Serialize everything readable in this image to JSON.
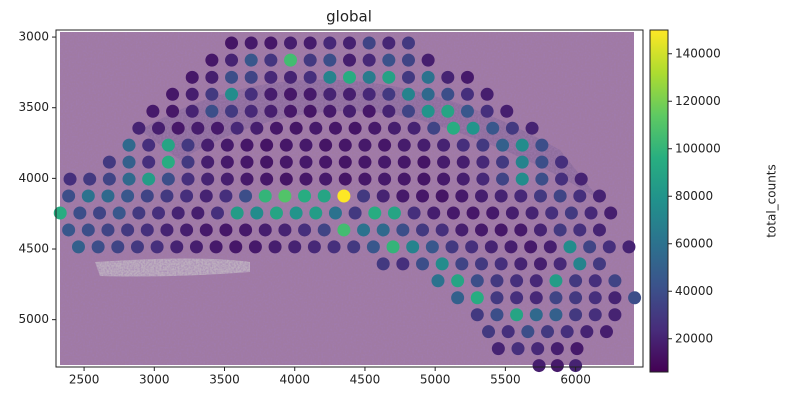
{
  "chart_data": {
    "type": "scatter",
    "title": "global",
    "colorbar_label": "total_counts",
    "colormap": "viridis",
    "xlim": [
      2300,
      6480
    ],
    "ylim": [
      5335,
      2950
    ],
    "xticks": [
      2500,
      3000,
      3500,
      4000,
      4500,
      5000,
      5500,
      6000
    ],
    "yticks": [
      3000,
      3500,
      4000,
      4500,
      5000
    ],
    "clim": [
      6000,
      150000
    ],
    "cticks": [
      20000,
      40000,
      60000,
      80000,
      100000,
      120000,
      140000
    ],
    "rows": [
      {
        "y": 3042,
        "x": [
          3550,
          3690,
          3830,
          3970,
          4110,
          4250,
          4390,
          4530,
          4670,
          4810
        ],
        "values": [
          14000,
          16000,
          15000,
          18000,
          17000,
          22000,
          19000,
          35000,
          21000,
          30000
        ]
      },
      {
        "y": 3163,
        "x": [
          3410,
          3550,
          3690,
          3830,
          3970,
          4110,
          4250,
          4390,
          4530,
          4670,
          4810,
          4950
        ],
        "values": [
          15000,
          20000,
          45000,
          28000,
          105000,
          30000,
          40000,
          18000,
          22000,
          42000,
          35000,
          18000
        ]
      },
      {
        "y": 3285,
        "x": [
          3270,
          3410,
          3550,
          3690,
          3830,
          3970,
          4110,
          4250,
          4390,
          4530,
          4670,
          4810,
          4950,
          5090,
          5230
        ],
        "values": [
          15000,
          18000,
          40000,
          35000,
          22000,
          20000,
          25000,
          70000,
          95000,
          65000,
          88000,
          30000,
          60000,
          20000,
          16000
        ]
      },
      {
        "y": 3405,
        "x": [
          3130,
          3270,
          3410,
          3550,
          3690,
          3830,
          3970,
          4110,
          4250,
          4390,
          4530,
          4670,
          4810,
          4950,
          5090,
          5230,
          5370
        ],
        "values": [
          15000,
          18000,
          30000,
          75000,
          25000,
          17000,
          15000,
          16000,
          20000,
          18000,
          22000,
          30000,
          70000,
          55000,
          40000,
          25000,
          18000
        ]
      },
      {
        "y": 3525,
        "x": [
          2990,
          3130,
          3270,
          3410,
          3550,
          3690,
          3830,
          3970,
          4110,
          4250,
          4390,
          4530,
          4670,
          4810,
          4950,
          5090,
          5230,
          5370,
          5510
        ],
        "values": [
          16000,
          15000,
          20000,
          40000,
          30000,
          22000,
          18000,
          15000,
          14000,
          16000,
          18000,
          15000,
          20000,
          35000,
          80000,
          90000,
          45000,
          25000,
          18000
        ]
      },
      {
        "y": 3645,
        "x": [
          2890,
          3030,
          3170,
          3310,
          3450,
          3590,
          3730,
          3870,
          4010,
          4150,
          4290,
          4430,
          4570,
          4710,
          4850,
          4990,
          5130,
          5270,
          5410,
          5550,
          5690
        ],
        "values": [
          20000,
          18000,
          15000,
          17000,
          16000,
          22000,
          18000,
          15000,
          14000,
          16000,
          15000,
          14000,
          16000,
          18000,
          20000,
          35000,
          95000,
          80000,
          45000,
          30000,
          20000
        ]
      },
      {
        "y": 3765,
        "x": [
          2820,
          2960,
          3100,
          3240,
          3380,
          3520,
          3660,
          3800,
          3940,
          4080,
          4220,
          4360,
          4500,
          4640,
          4780,
          4920,
          5060,
          5200,
          5340,
          5480,
          5620,
          5760
        ],
        "values": [
          55000,
          25000,
          90000,
          30000,
          18000,
          16000,
          15000,
          14000,
          15000,
          16000,
          14000,
          15000,
          16000,
          15000,
          17000,
          18000,
          20000,
          25000,
          30000,
          50000,
          75000,
          40000
        ]
      },
      {
        "y": 3885,
        "x": [
          2680,
          2820,
          2960,
          3100,
          3240,
          3380,
          3520,
          3660,
          3800,
          3940,
          4080,
          4220,
          4360,
          4500,
          4640,
          4780,
          4920,
          5060,
          5200,
          5340,
          5480,
          5620,
          5760,
          5900
        ],
        "values": [
          30000,
          50000,
          25000,
          95000,
          30000,
          18000,
          16000,
          15000,
          14000,
          15000,
          16000,
          15000,
          14000,
          15000,
          16000,
          15000,
          14000,
          17000,
          18000,
          22000,
          30000,
          70000,
          40000,
          25000
        ]
      },
      {
        "y": 4005,
        "x": [
          2400,
          2540,
          2680,
          2820,
          2960,
          3100,
          3240,
          3380,
          3520,
          3660,
          3800,
          3940,
          4080,
          4220,
          4360,
          4500,
          4640,
          4780,
          4920,
          5060,
          5200,
          5340,
          5480,
          5620,
          5760,
          5900,
          6040
        ],
        "values": [
          25000,
          30000,
          35000,
          55000,
          85000,
          40000,
          25000,
          20000,
          18000,
          16000,
          15000,
          14000,
          15000,
          16000,
          14000,
          15000,
          16000,
          15000,
          14000,
          16000,
          18000,
          22000,
          35000,
          75000,
          40000,
          25000,
          20000
        ]
      },
      {
        "y": 4125,
        "x": [
          2390,
          2530,
          2670,
          2810,
          2950,
          3090,
          3230,
          3370,
          3510,
          3650,
          3790,
          3930,
          4070,
          4210,
          4350,
          4490,
          4630,
          4770,
          4910,
          5050,
          5190,
          5330,
          5470,
          5610,
          5750,
          5890,
          6030,
          6170
        ],
        "values": [
          40000,
          60000,
          55000,
          45000,
          35000,
          30000,
          25000,
          20000,
          25000,
          40000,
          100000,
          110000,
          95000,
          90000,
          150000,
          30000,
          20000,
          16000,
          15000,
          14000,
          16000,
          18000,
          20000,
          22000,
          30000,
          35000,
          25000,
          20000
        ]
      },
      {
        "y": 4245,
        "x": [
          2330,
          2470,
          2610,
          2750,
          2890,
          3030,
          3170,
          3310,
          3450,
          3590,
          3730,
          3870,
          4010,
          4150,
          4290,
          4430,
          4570,
          4710,
          4850,
          4990,
          5130,
          5270,
          5410,
          5550,
          5690,
          5830,
          5970,
          6110,
          6250
        ],
        "values": [
          95000,
          40000,
          35000,
          45000,
          30000,
          25000,
          20000,
          18000,
          25000,
          85000,
          75000,
          90000,
          80000,
          85000,
          60000,
          30000,
          95000,
          90000,
          25000,
          18000,
          16000,
          15000,
          16000,
          18000,
          20000,
          25000,
          30000,
          22000,
          18000
        ]
      },
      {
        "y": 4365,
        "x": [
          2390,
          2530,
          2670,
          2810,
          2950,
          3090,
          3230,
          3370,
          3510,
          3650,
          3790,
          3930,
          4070,
          4210,
          4350,
          4490,
          4630,
          4770,
          4910,
          5050,
          5190,
          5330,
          5470,
          5610,
          5750,
          5890,
          6030,
          6170
        ],
        "values": [
          45000,
          40000,
          35000,
          30000,
          25000,
          20000,
          18000,
          16000,
          15000,
          16000,
          18000,
          20000,
          25000,
          35000,
          105000,
          60000,
          55000,
          40000,
          30000,
          25000,
          18000,
          16000,
          15000,
          16000,
          20000,
          30000,
          25000,
          20000
        ]
      },
      {
        "y": 4485,
        "x": [
          2460,
          2600,
          2740,
          2880,
          3020,
          3160,
          3300,
          3440,
          3580,
          3720,
          3860,
          4000,
          4140,
          4280,
          4420,
          4560,
          4700,
          4840,
          4980,
          5120,
          5260,
          5400,
          5540,
          5680,
          5820,
          5960,
          6100,
          6240,
          6380
        ],
        "values": [
          50000,
          40000,
          35000,
          30000,
          25000,
          20000,
          18000,
          16000,
          15000,
          16000,
          18000,
          20000,
          22000,
          25000,
          30000,
          45000,
          100000,
          70000,
          45000,
          30000,
          25000,
          20000,
          18000,
          16000,
          18000,
          75000,
          35000,
          25000,
          20000
        ]
      },
      {
        "y": 4605,
        "x": [
          4630,
          4770,
          4910,
          5050,
          5190,
          5330,
          5470,
          5610,
          5750,
          5890,
          6030,
          6170
        ],
        "values": [
          30000,
          25000,
          40000,
          75000,
          35000,
          30000,
          25000,
          20000,
          18000,
          22000,
          70000,
          30000
        ]
      },
      {
        "y": 4725,
        "x": [
          5020,
          5160,
          5300,
          5440,
          5580,
          5720,
          5860,
          6000,
          6140,
          6280
        ],
        "values": [
          60000,
          90000,
          40000,
          30000,
          25000,
          22000,
          85000,
          30000,
          25000,
          35000
        ]
      },
      {
        "y": 4845,
        "x": [
          5160,
          5300,
          5440,
          5580,
          5720,
          5860,
          6000,
          6140,
          6280,
          6420
        ],
        "values": [
          50000,
          95000,
          30000,
          25000,
          22000,
          35000,
          30000,
          25000,
          20000,
          40000
        ]
      },
      {
        "y": 4965,
        "x": [
          5300,
          5440,
          5580,
          5720,
          5860,
          6000,
          6140,
          6280
        ],
        "values": [
          30000,
          40000,
          90000,
          55000,
          50000,
          30000,
          25000,
          20000
        ]
      },
      {
        "y": 5085,
        "x": [
          5380,
          5520,
          5660,
          5800,
          5940,
          6080,
          6220
        ],
        "values": [
          30000,
          25000,
          40000,
          30000,
          25000,
          20000,
          18000
        ]
      },
      {
        "y": 5205,
        "x": [
          5450,
          5590,
          5730,
          5870,
          6010
        ],
        "values": [
          20000,
          25000,
          22000,
          18000,
          16000
        ]
      },
      {
        "y": 5325,
        "x": [
          5740,
          5870,
          6000
        ],
        "values": [
          18000,
          16000,
          20000
        ]
      }
    ]
  }
}
